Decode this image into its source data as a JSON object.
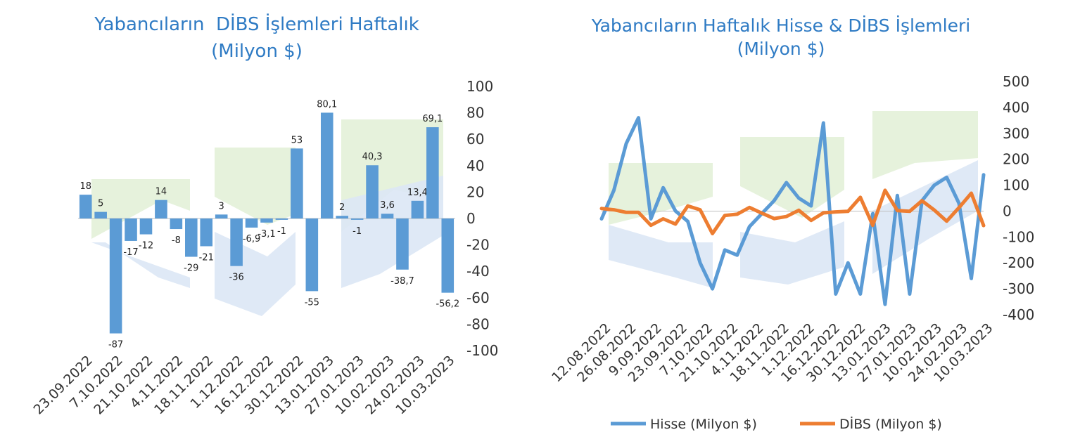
{
  "colors": {
    "bar": "#5b9bd5",
    "hisse": "#5b9bd5",
    "dibs": "#ed7d31",
    "title": "#2f7bc4",
    "watermark_green": "#e3f1d8",
    "watermark_blue": "#dbe7f5"
  },
  "chart_data": [
    {
      "type": "bar",
      "title": "Yabancıların  DİBS İşlemleri Haftalık",
      "subtitle": "(Milyon $)",
      "ylim": [
        -100,
        100
      ],
      "y_ticks": [
        "100",
        "80",
        "60",
        "40",
        "20",
        "0",
        "-20",
        "-40",
        "-60",
        "-80",
        "-100"
      ],
      "y_axis_position": "right",
      "x_tick_labels": [
        "23.09.2022",
        "7.10.2022",
        "21.10.2022",
        "4.11.2022",
        "18.11.2022",
        "1.12.2022",
        "16.12.2022",
        "30.12.2022",
        "13.01.2023",
        "27.01.2023",
        "10.02.2023",
        "24.02.2023",
        "10.03.2023"
      ],
      "values": [
        18,
        5,
        -87,
        -17,
        -12,
        14,
        -8,
        -29,
        -21,
        3,
        -36,
        -6.9,
        -3.1,
        -1,
        53,
        -55,
        80.1,
        2,
        -1,
        40.3,
        3.6,
        -38.7,
        13.4,
        69.1,
        -56.2
      ],
      "data_labels": [
        "18",
        "5",
        "-87",
        "-17",
        "-12",
        "14",
        "-8",
        "-29",
        "-21",
        "3",
        "-36",
        "-6,9",
        "-3,1",
        "-1",
        "53",
        "-55",
        "80,1",
        "2",
        "-1",
        "40,3",
        "3,6",
        "-38,7",
        "13,4",
        "69,1",
        "-56,2"
      ],
      "grid": false
    },
    {
      "type": "line",
      "title": "Yabancıların Haftalık Hisse & DİBS İşlemleri",
      "subtitle": "(Milyon $)",
      "ylim": [
        -400,
        500
      ],
      "y_ticks": [
        "500",
        "400",
        "300",
        "200",
        "100",
        "0",
        "-100",
        "-200",
        "-300",
        "-400"
      ],
      "y_axis_position": "right",
      "x_tick_labels": [
        "12.08.2022",
        "26.08.2022",
        "9.09.2022",
        "23.09.2022",
        "7.10.2022",
        "21.10.2022",
        "4.11.2022",
        "18.11.2022",
        "1.12.2022",
        "16.12.2022",
        "30.12.2022",
        "13.01.2023",
        "27.01.2023",
        "10.02.2023",
        "24.02.2023",
        "10.03.2023"
      ],
      "legend": "bottom",
      "grid": false,
      "series": [
        {
          "name": "Hisse (Milyon $)",
          "values": [
            -30,
            80,
            260,
            360,
            -30,
            90,
            0,
            -40,
            -200,
            -300,
            -150,
            -170,
            -60,
            -10,
            40,
            110,
            50,
            20,
            340,
            -320,
            -200,
            -320,
            -10,
            -360,
            60,
            -320,
            40,
            100,
            130,
            30,
            -260,
            140
          ]
        },
        {
          "name": "DİBS (Milyon $)",
          "values": [
            10,
            5,
            -5,
            -5,
            -55,
            -30,
            -50,
            20,
            5,
            -87,
            -17,
            -12,
            14,
            -8,
            -29,
            -21,
            3,
            -36,
            -7,
            -3,
            -1,
            53,
            -55,
            80,
            2,
            -1,
            40,
            4,
            -39,
            13,
            69,
            -56
          ]
        }
      ]
    }
  ]
}
